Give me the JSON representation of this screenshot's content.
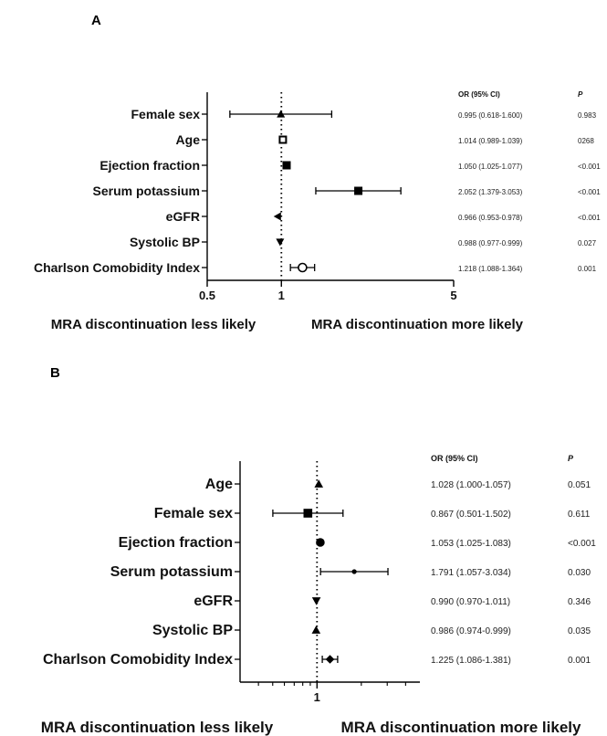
{
  "chart_data": [
    {
      "type": "forest",
      "panel": "A",
      "xscale": "log",
      "xlim": [
        0.5,
        5
      ],
      "xticks": [
        "0.5",
        "1",
        "5"
      ],
      "reference_line": 1,
      "left_label": "MRA discontinuation less likely",
      "right_label": "MRA discontinuation more likely",
      "columns": [
        "OR (95% CI)",
        "P"
      ],
      "rows": [
        {
          "label": "Female sex",
          "or": 0.995,
          "lo": 0.618,
          "hi": 1.6,
          "ci_text": "0.995 (0.618-1.600)",
          "p": "0.983",
          "marker": "triangle-up"
        },
        {
          "label": "Age",
          "or": 1.014,
          "lo": 0.989,
          "hi": 1.039,
          "ci_text": "1.014 (0.989-1.039)",
          "p": "0268",
          "marker": "square-open"
        },
        {
          "label": "Ejection fraction",
          "or": 1.05,
          "lo": 1.025,
          "hi": 1.077,
          "ci_text": "1.050 (1.025-1.077)",
          "p": "<0.001",
          "marker": "square"
        },
        {
          "label": "Serum potassium",
          "or": 2.052,
          "lo": 1.379,
          "hi": 3.053,
          "ci_text": "2.052 (1.379-3.053)",
          "p": "<0.001",
          "marker": "square"
        },
        {
          "label": "eGFR",
          "or": 0.966,
          "lo": 0.953,
          "hi": 0.978,
          "ci_text": "0.966 (0.953-0.978)",
          "p": "<0.001",
          "marker": "triangle-left"
        },
        {
          "label": "Systolic BP",
          "or": 0.988,
          "lo": 0.977,
          "hi": 0.999,
          "ci_text": "0.988 (0.977-0.999)",
          "p": "0.027",
          "marker": "triangle-down"
        },
        {
          "label": "Charlson Comobidity Index",
          "or": 1.218,
          "lo": 1.088,
          "hi": 1.364,
          "ci_text": "1.218 (1.088-1.364)",
          "p": "0.001",
          "marker": "circle-open"
        }
      ]
    },
    {
      "type": "forest",
      "panel": "B",
      "xscale": "log",
      "xlim": [
        0.3,
        5
      ],
      "xticks": [
        "1"
      ],
      "reference_line": 1,
      "left_label": "MRA discontinuation less likely",
      "right_label": "MRA discontinuation more likely",
      "columns": [
        "OR (95% CI)",
        "P"
      ],
      "rows": [
        {
          "label": "Age",
          "or": 1.028,
          "lo": 1.0,
          "hi": 1.057,
          "ci_text": "1.028 (1.000-1.057)",
          "p": "0.051",
          "marker": "triangle-up"
        },
        {
          "label": "Female sex",
          "or": 0.867,
          "lo": 0.501,
          "hi": 1.502,
          "ci_text": "0.867 (0.501-1.502)",
          "p": "0.611",
          "marker": "square"
        },
        {
          "label": "Ejection fraction",
          "or": 1.053,
          "lo": 1.025,
          "hi": 1.083,
          "ci_text": "1.053 (1.025-1.083)",
          "p": "<0.001",
          "marker": "circle"
        },
        {
          "label": "Serum potassium",
          "or": 1.791,
          "lo": 1.057,
          "hi": 3.034,
          "ci_text": "1.791 (1.057-3.034)",
          "p": "0.030",
          "marker": "dot"
        },
        {
          "label": "eGFR",
          "or": 0.99,
          "lo": 0.97,
          "hi": 1.011,
          "ci_text": "0.990 (0.970-1.011)",
          "p": "0.346",
          "marker": "triangle-down"
        },
        {
          "label": "Systolic BP",
          "or": 0.986,
          "lo": 0.974,
          "hi": 0.999,
          "ci_text": "0.986 (0.974-0.999)",
          "p": "0.035",
          "marker": "triangle-up"
        },
        {
          "label": "Charlson Comobidity Index",
          "or": 1.225,
          "lo": 1.086,
          "hi": 1.381,
          "ci_text": "1.225 (1.086-1.381)",
          "p": "0.001",
          "marker": "diamond"
        }
      ]
    }
  ]
}
